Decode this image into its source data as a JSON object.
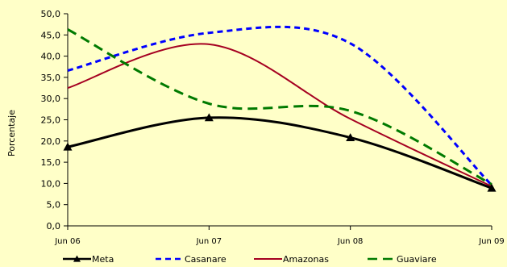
{
  "chart_data": {
    "type": "line",
    "title": "",
    "xlabel": "",
    "ylabel": "Porcentaje",
    "categories": [
      "Jun 06",
      "Jun 07",
      "Jun 08",
      "Jun 09"
    ],
    "y_ticks": [
      "0,0",
      "5,0",
      "10,0",
      "15,0",
      "20,0",
      "25,0",
      "30,0",
      "35,0",
      "40,0",
      "45,0",
      "50,0"
    ],
    "ylim": [
      0,
      50
    ],
    "grid": false,
    "legend_position": "bottom",
    "series": [
      {
        "name": "Meta",
        "values": [
          18.6,
          25.5,
          20.8,
          8.9
        ],
        "color": "#000000",
        "style": "solid-triangle-markers"
      },
      {
        "name": "Casanare",
        "values": [
          36.6,
          45.5,
          43.0,
          9.6
        ],
        "color": "#0000ff",
        "style": "dashed"
      },
      {
        "name": "Amazonas",
        "values": [
          32.5,
          42.8,
          25.2,
          9.3
        ],
        "color": "#a50021",
        "style": "solid"
      },
      {
        "name": "Guaviare",
        "values": [
          46.3,
          28.8,
          27.1,
          9.8
        ],
        "color": "#007a00",
        "style": "long-dashed"
      }
    ]
  }
}
